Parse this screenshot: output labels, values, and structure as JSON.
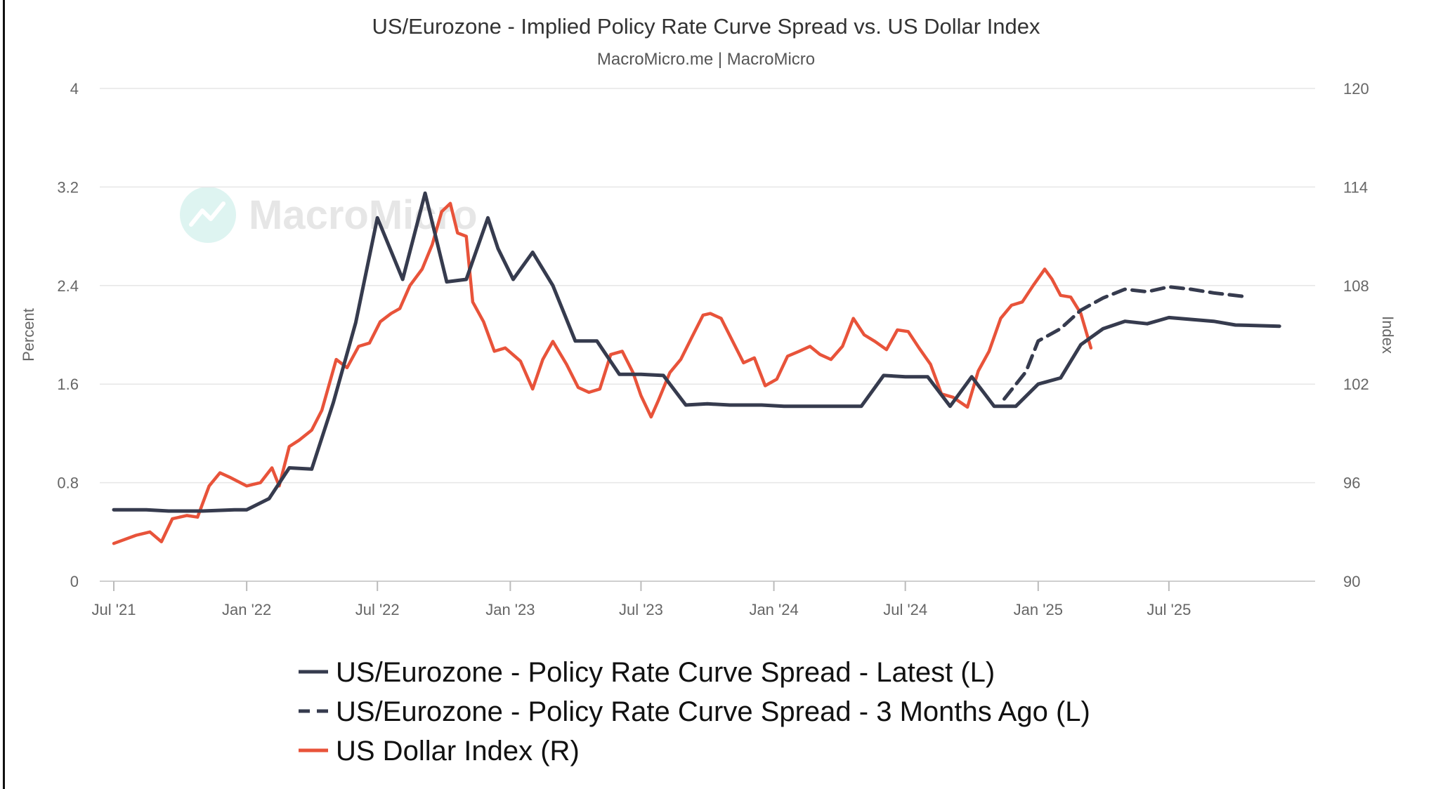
{
  "chart_data": {
    "type": "line",
    "title": "US/Eurozone - Implied Policy Rate Curve Spread vs. US Dollar Index",
    "subtitle": "MacroMicro.me | MacroMicro",
    "watermark": "MacroMicro",
    "ylabel_left": "Percent",
    "ylabel_right": "Index",
    "ylim_left": [
      0,
      4
    ],
    "ylim_right": [
      90,
      120
    ],
    "yticks_left": [
      "0",
      "0.8",
      "1.6",
      "2.4",
      "3.2",
      "4"
    ],
    "yticks_right": [
      "90",
      "96",
      "102",
      "108",
      "114",
      "120"
    ],
    "xlim": [
      "2021-07-01",
      "2025-12-31"
    ],
    "xticks": [
      {
        "date": "2021-07-01",
        "label": "Jul '21"
      },
      {
        "date": "2022-01-01",
        "label": "Jan '22"
      },
      {
        "date": "2022-07-01",
        "label": "Jul '22"
      },
      {
        "date": "2023-01-01",
        "label": "Jan '23"
      },
      {
        "date": "2023-07-01",
        "label": "Jul '23"
      },
      {
        "date": "2024-01-01",
        "label": "Jan '24"
      },
      {
        "date": "2024-07-01",
        "label": "Jul '24"
      },
      {
        "date": "2025-01-01",
        "label": "Jan '25"
      },
      {
        "date": "2025-07-01",
        "label": "Jul '25"
      }
    ],
    "grid": true,
    "legend_position": "bottom",
    "series": [
      {
        "name": "US/Eurozone - Policy Rate Curve Spread - Latest (L)",
        "axis": "left",
        "color": "#363b4e",
        "style": "solid",
        "x": [
          "2021-07-01",
          "2021-08-15",
          "2021-09-15",
          "2021-11-01",
          "2021-12-15",
          "2022-01-01",
          "2022-02-01",
          "2022-03-01",
          "2022-04-01",
          "2022-05-01",
          "2022-06-01",
          "2022-07-01",
          "2022-08-05",
          "2022-09-05",
          "2022-10-05",
          "2022-11-01",
          "2022-12-01",
          "2022-12-15",
          "2023-01-05",
          "2023-02-01",
          "2023-03-01",
          "2023-04-01",
          "2023-05-01",
          "2023-06-01",
          "2023-07-01",
          "2023-08-01",
          "2023-09-01",
          "2023-10-01",
          "2023-11-01",
          "2023-12-15",
          "2024-01-15",
          "2024-03-01",
          "2024-04-01",
          "2024-05-01",
          "2024-06-01",
          "2024-07-01",
          "2024-08-01",
          "2024-09-01",
          "2024-10-01",
          "2024-11-01",
          "2024-12-01",
          "2025-01-01",
          "2025-02-01",
          "2025-03-01",
          "2025-04-01",
          "2025-05-01",
          "2025-06-01",
          "2025-07-01",
          "2025-09-01",
          "2025-10-01",
          "2025-12-01"
        ],
        "y": [
          0.58,
          0.58,
          0.57,
          0.57,
          0.58,
          0.58,
          0.67,
          0.92,
          0.91,
          1.45,
          2.1,
          2.95,
          2.45,
          3.15,
          2.43,
          2.45,
          2.95,
          2.7,
          2.45,
          2.67,
          2.4,
          1.95,
          1.95,
          1.68,
          1.68,
          1.67,
          1.43,
          1.44,
          1.43,
          1.43,
          1.42,
          1.42,
          1.42,
          1.42,
          1.67,
          1.66,
          1.66,
          1.42,
          1.66,
          1.42,
          1.42,
          1.6,
          1.65,
          1.92,
          2.05,
          2.11,
          2.09,
          2.14,
          2.11,
          2.08,
          2.07
        ]
      },
      {
        "name": "US/Eurozone - Policy Rate Curve Spread - 3 Months Ago (L)",
        "axis": "left",
        "color": "#363b4e",
        "style": "dashed",
        "x": [
          "2024-11-15",
          "2024-12-15",
          "2025-01-01",
          "2025-02-01",
          "2025-03-01",
          "2025-04-01",
          "2025-05-01",
          "2025-06-01",
          "2025-07-01",
          "2025-08-01",
          "2025-09-01",
          "2025-10-15"
        ],
        "y": [
          1.48,
          1.7,
          1.95,
          2.05,
          2.2,
          2.3,
          2.37,
          2.35,
          2.39,
          2.37,
          2.34,
          2.31
        ]
      },
      {
        "name": "US Dollar Index (R)",
        "axis": "right",
        "color": "#e8533a",
        "style": "solid",
        "x": [
          "2021-07-01",
          "2021-08-01",
          "2021-08-20",
          "2021-09-05",
          "2021-09-20",
          "2021-10-10",
          "2021-10-25",
          "2021-11-10",
          "2021-11-25",
          "2021-12-10",
          "2022-01-01",
          "2022-01-20",
          "2022-02-05",
          "2022-02-15",
          "2022-03-01",
          "2022-03-15",
          "2022-04-01",
          "2022-04-15",
          "2022-05-05",
          "2022-05-20",
          "2022-06-05",
          "2022-06-20",
          "2022-07-05",
          "2022-07-20",
          "2022-08-01",
          "2022-08-15",
          "2022-09-01",
          "2022-09-15",
          "2022-09-28",
          "2022-10-10",
          "2022-10-20",
          "2022-11-01",
          "2022-11-10",
          "2022-11-25",
          "2022-12-10",
          "2022-12-25",
          "2023-01-15",
          "2023-02-01",
          "2023-02-15",
          "2023-03-01",
          "2023-03-20",
          "2023-04-05",
          "2023-04-20",
          "2023-05-05",
          "2023-05-20",
          "2023-06-05",
          "2023-06-20",
          "2023-07-01",
          "2023-07-15",
          "2023-07-25",
          "2023-08-10",
          "2023-08-25",
          "2023-09-10",
          "2023-09-25",
          "2023-10-05",
          "2023-10-20",
          "2023-11-05",
          "2023-11-20",
          "2023-12-05",
          "2023-12-20",
          "2024-01-05",
          "2024-01-20",
          "2024-02-05",
          "2024-02-20",
          "2024-03-05",
          "2024-03-20",
          "2024-04-05",
          "2024-04-20",
          "2024-05-05",
          "2024-05-20",
          "2024-06-05",
          "2024-06-20",
          "2024-07-05",
          "2024-07-20",
          "2024-08-05",
          "2024-08-20",
          "2024-09-05",
          "2024-09-25",
          "2024-10-10",
          "2024-10-25",
          "2024-11-10",
          "2024-11-25",
          "2024-12-10",
          "2024-12-25",
          "2025-01-10",
          "2025-01-20",
          "2025-02-01",
          "2025-02-15",
          "2025-03-01",
          "2025-03-15"
        ],
        "y": [
          92.3,
          92.8,
          93.0,
          92.4,
          93.8,
          94.0,
          93.9,
          95.8,
          96.6,
          96.3,
          95.8,
          96.0,
          96.9,
          95.8,
          98.2,
          98.6,
          99.2,
          100.4,
          103.5,
          103.0,
          104.3,
          104.5,
          105.8,
          106.3,
          106.6,
          108.0,
          109.0,
          110.5,
          112.5,
          113.0,
          111.2,
          111.0,
          107.0,
          105.8,
          104.0,
          104.2,
          103.4,
          101.7,
          103.5,
          104.6,
          103.2,
          101.8,
          101.5,
          101.7,
          103.8,
          104.0,
          102.7,
          101.3,
          100.0,
          101.0,
          102.7,
          103.5,
          104.9,
          106.2,
          106.3,
          106.0,
          104.6,
          103.3,
          103.6,
          101.9,
          102.3,
          103.7,
          104.0,
          104.3,
          103.8,
          103.5,
          104.3,
          106.0,
          105.0,
          104.6,
          104.1,
          105.3,
          105.2,
          104.2,
          103.2,
          101.4,
          101.2,
          100.6,
          102.8,
          104.0,
          106.0,
          106.8,
          107.0,
          108.0,
          109.0,
          108.4,
          107.4,
          107.3,
          106.3,
          104.2
        ]
      }
    ]
  }
}
